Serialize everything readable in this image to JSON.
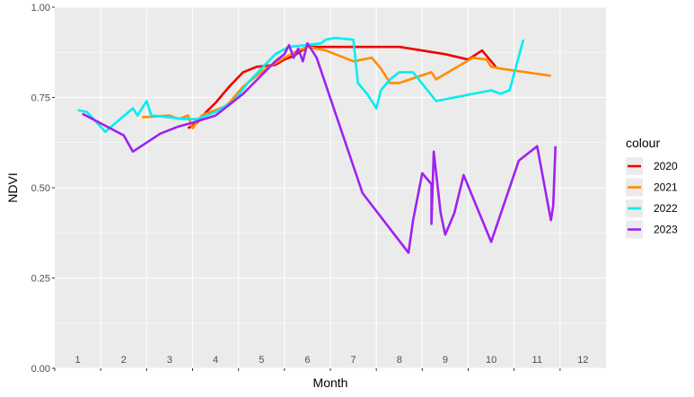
{
  "chart_data": {
    "type": "line",
    "xlabel": "Month",
    "ylabel": "NDVI",
    "xlim": [
      0.5,
      12.5
    ],
    "ylim": [
      0,
      1
    ],
    "y_ticks": [
      "0.00",
      "0.25",
      "0.50",
      "0.75",
      "1.00"
    ],
    "y_tick_values": [
      0,
      0.25,
      0.5,
      0.75,
      1
    ],
    "x_ticks": [
      "1",
      "2",
      "3",
      "4",
      "5",
      "6",
      "7",
      "8",
      "9",
      "10",
      "11",
      "12"
    ],
    "grid": true,
    "legend_title": "colour",
    "legend_position": "right",
    "series": [
      {
        "name": "2020",
        "color": "#ee0000",
        "x": [
          3.4,
          3.6,
          3.8,
          4.0,
          4.3,
          4.6,
          4.9,
          5.3,
          5.5,
          5.7,
          6.0,
          6.3,
          6.8,
          7.4,
          8.0,
          9.0,
          9.5,
          9.8,
          10.1
        ],
        "y": [
          0.665,
          0.68,
          0.71,
          0.735,
          0.78,
          0.82,
          0.835,
          0.84,
          0.855,
          0.865,
          0.89,
          0.89,
          0.89,
          0.89,
          0.89,
          0.87,
          0.855,
          0.88,
          0.835
        ]
      },
      {
        "name": "2021",
        "color": "#ff8c00",
        "x": [
          2.4,
          3.0,
          3.2,
          3.4,
          3.5,
          3.7,
          4.2,
          4.3,
          4.6,
          5.1,
          5.5,
          5.8,
          6.0,
          6.4,
          7.0,
          7.4,
          7.6,
          7.8,
          8.0,
          8.7,
          8.8,
          9.6,
          9.9,
          10.0,
          10.2,
          11.3
        ],
        "y": [
          0.695,
          0.7,
          0.69,
          0.7,
          0.665,
          0.7,
          0.725,
          0.735,
          0.78,
          0.83,
          0.86,
          0.88,
          0.89,
          0.88,
          0.85,
          0.86,
          0.83,
          0.79,
          0.79,
          0.82,
          0.8,
          0.86,
          0.855,
          0.835,
          0.83,
          0.81
        ]
      },
      {
        "name": "2022",
        "color": "#00eeee",
        "x": [
          1.0,
          1.2,
          1.6,
          2.2,
          2.3,
          2.5,
          2.6,
          3.0,
          3.3,
          3.4,
          3.6,
          4.0,
          4.4,
          4.7,
          5.3,
          5.6,
          6.0,
          6.3,
          6.4,
          6.6,
          7.0,
          7.1,
          7.3,
          7.5,
          7.6,
          7.8,
          8.0,
          8.3,
          8.8,
          10.0,
          10.2,
          10.4,
          10.7
        ],
        "y": [
          0.715,
          0.71,
          0.655,
          0.72,
          0.7,
          0.74,
          0.7,
          0.695,
          0.69,
          0.69,
          0.69,
          0.71,
          0.74,
          0.79,
          0.87,
          0.89,
          0.895,
          0.9,
          0.91,
          0.915,
          0.91,
          0.79,
          0.76,
          0.72,
          0.77,
          0.8,
          0.82,
          0.82,
          0.74,
          0.77,
          0.76,
          0.77,
          0.91
        ]
      },
      {
        "name": "2023",
        "color": "#a020f0",
        "x": [
          1.1,
          2.0,
          2.2,
          2.8,
          3.2,
          3.5,
          4.0,
          4.2,
          4.6,
          5.3,
          5.5,
          5.6,
          5.7,
          5.8,
          5.9,
          6.0,
          6.2,
          7.2,
          8.2,
          8.3,
          8.5,
          8.6,
          8.7,
          8.7,
          8.75,
          8.9,
          9.0,
          9.2,
          9.4,
          10.0,
          10.6,
          11.0,
          11.3,
          11.35,
          11.4
        ],
        "y": [
          0.705,
          0.645,
          0.6,
          0.65,
          0.67,
          0.68,
          0.7,
          0.72,
          0.76,
          0.85,
          0.87,
          0.895,
          0.86,
          0.885,
          0.85,
          0.9,
          0.86,
          0.485,
          0.32,
          0.41,
          0.54,
          0.525,
          0.51,
          0.4,
          0.6,
          0.43,
          0.37,
          0.43,
          0.535,
          0.35,
          0.575,
          0.615,
          0.41,
          0.45,
          0.615
        ]
      }
    ]
  }
}
